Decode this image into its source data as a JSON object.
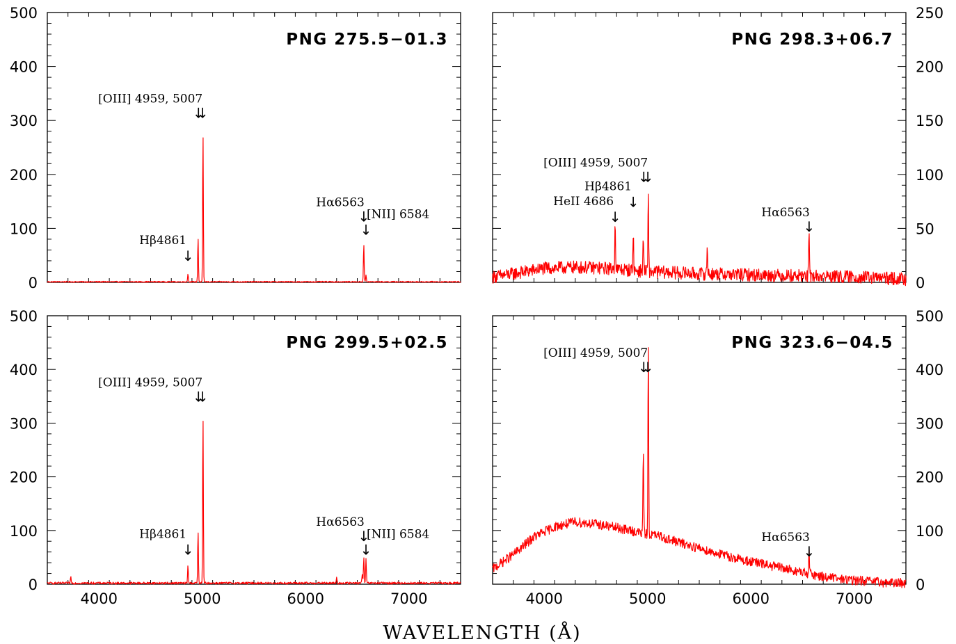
{
  "figure": {
    "xlabel": "WAVELENGTH (Å)"
  },
  "chart_data": [
    {
      "type": "line",
      "title": "PNG 275.5−01.3",
      "xlim": [
        3500,
        7500
      ],
      "ylim": [
        0,
        500
      ],
      "x_ticks": [
        4000,
        5000,
        6000,
        7000
      ],
      "y_ticks": [
        0,
        100,
        200,
        300,
        400,
        500
      ],
      "y_axis_side": "left",
      "series": [
        {
          "color": "#ff0000",
          "baseline": 1,
          "noise": 1,
          "lines": [
            [
              4861,
              15
            ],
            [
              4959,
              82
            ],
            [
              5007,
              277
            ],
            [
              6563,
              70
            ],
            [
              6584,
              12
            ]
          ]
        }
      ],
      "annotations": [
        {
          "label": "Hβ4861",
          "x": 4861,
          "y": 40
        },
        {
          "label": "[OIII] 4959, 5007",
          "x": 4983,
          "y": 305
        },
        {
          "label": "Hα6563",
          "x": 6563,
          "y": 113
        },
        {
          "label": "[NII] 6584",
          "x": 6584,
          "y": 88
        }
      ]
    },
    {
      "type": "line",
      "title": "PNG 298.3+06.7",
      "xlim": [
        3500,
        7500
      ],
      "ylim": [
        0,
        250
      ],
      "x_ticks": [
        4000,
        5000,
        6000,
        7000
      ],
      "y_ticks": [
        0,
        50,
        100,
        150,
        200,
        250
      ],
      "y_axis_side": "right",
      "series": [
        {
          "color": "#ff0000",
          "continuum": [
            [
              3500,
              5
            ],
            [
              3700,
              8
            ],
            [
              4000,
              13
            ],
            [
              4300,
              14
            ],
            [
              4600,
              13
            ],
            [
              5000,
              10
            ],
            [
              5500,
              8
            ],
            [
              6000,
              7
            ],
            [
              6500,
              6
            ],
            [
              7000,
              5
            ],
            [
              7500,
              3
            ]
          ],
          "noise": 6,
          "lines": [
            [
              4686,
              47
            ],
            [
              4861,
              37
            ],
            [
              4959,
              33
            ],
            [
              5007,
              70
            ],
            [
              5577,
              25
            ],
            [
              6563,
              39
            ]
          ]
        }
      ],
      "annotations": [
        {
          "label": "HeII 4686",
          "x": 4686,
          "y": 56
        },
        {
          "label": "Hβ4861",
          "x": 4861,
          "y": 70
        },
        {
          "label": "[OIII] 4959, 5007",
          "x": 4983,
          "y": 93
        },
        {
          "label": "Hα6563",
          "x": 6563,
          "y": 47
        }
      ]
    },
    {
      "type": "line",
      "title": "PNG 299.5+02.5",
      "xlim": [
        3500,
        7500
      ],
      "ylim": [
        0,
        500
      ],
      "x_ticks": [
        4000,
        5000,
        6000,
        7000
      ],
      "y_ticks": [
        0,
        100,
        200,
        300,
        400,
        500
      ],
      "y_axis_side": "left",
      "series": [
        {
          "color": "#ff0000",
          "baseline": 2,
          "noise": 2,
          "lines": [
            [
              3727,
              12
            ],
            [
              4861,
              32
            ],
            [
              4959,
              97
            ],
            [
              5007,
              313
            ],
            [
              6300,
              10
            ],
            [
              6548,
              18
            ],
            [
              6563,
              48
            ],
            [
              6584,
              45
            ]
          ]
        }
      ],
      "annotations": [
        {
          "label": "Hβ4861",
          "x": 4861,
          "y": 55
        },
        {
          "label": "[OIII] 4959, 5007",
          "x": 4983,
          "y": 340
        },
        {
          "label": "Hα6563",
          "x": 6563,
          "y": 80
        },
        {
          "label": "[NII] 6584",
          "x": 6584,
          "y": 55
        }
      ]
    },
    {
      "type": "line",
      "title": "PNG 323.6−04.5",
      "xlim": [
        3500,
        7500
      ],
      "ylim": [
        0,
        500
      ],
      "x_ticks": [
        4000,
        5000,
        6000,
        7000
      ],
      "y_ticks": [
        0,
        100,
        200,
        300,
        400,
        500
      ],
      "y_axis_side": "right",
      "series": [
        {
          "color": "#ff0000",
          "continuum": [
            [
              3500,
              28
            ],
            [
              3700,
              55
            ],
            [
              3900,
              88
            ],
            [
              4100,
              107
            ],
            [
              4300,
              116
            ],
            [
              4500,
              112
            ],
            [
              4700,
              105
            ],
            [
              4900,
              97
            ],
            [
              5100,
              90
            ],
            [
              5300,
              78
            ],
            [
              5500,
              67
            ],
            [
              5700,
              56
            ],
            [
              5900,
              46
            ],
            [
              6100,
              38
            ],
            [
              6300,
              30
            ],
            [
              6500,
              22
            ],
            [
              6700,
              14
            ],
            [
              6900,
              9
            ],
            [
              7100,
              6
            ],
            [
              7300,
              3
            ],
            [
              7500,
              2
            ]
          ],
          "noise": 9,
          "lines": [
            [
              4959,
              160
            ],
            [
              5007,
              358
            ],
            [
              6563,
              40
            ]
          ]
        }
      ],
      "annotations": [
        {
          "label": "[OIII] 4959, 5007",
          "x": 4983,
          "y": 395
        },
        {
          "label": "Hα6563",
          "x": 6563,
          "y": 52
        }
      ]
    }
  ]
}
